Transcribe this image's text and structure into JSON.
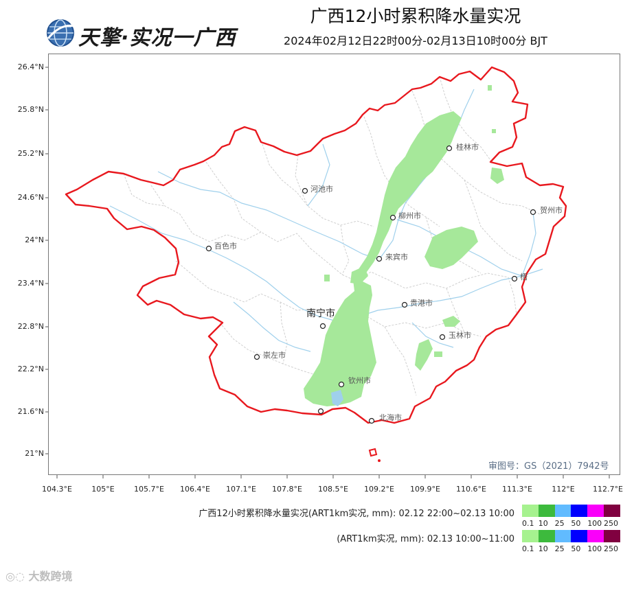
{
  "header": {
    "logo_text": "天擎·实况一广西",
    "title": "广西12小时累积降水量实况",
    "subtitle": "2024年02月12日22时00分-02月13日10时00分 BJT"
  },
  "map": {
    "y_axis_labels": [
      "26.4°N",
      "25.8°N",
      "25.2°N",
      "24.6°N",
      "24°N",
      "23.4°N",
      "22.8°N",
      "22.2°N",
      "21.6°N",
      "21°N"
    ],
    "x_axis_labels": [
      "104.3°E",
      "105°E",
      "105.7°E",
      "106.4°E",
      "107.1°E",
      "107.8°E",
      "108.5°E",
      "109.2°E",
      "109.9°E",
      "110.6°E",
      "111.3°E",
      "112°E",
      "112.7°E"
    ],
    "cities": {
      "guilin": "桂林市",
      "hechi": "河池市",
      "hezhou": "贺州市",
      "liuzhou": "柳州市",
      "baise": "百色市",
      "laibin": "来宾市",
      "wuzhou": "梧",
      "guigang": "贵港市",
      "nanning": "南宁市",
      "yulin": "玉林市",
      "chongzuo": "崇左市",
      "qinzhou": "钦州市",
      "beihai": "北海市"
    },
    "approval": "审图号：GS（2021）7942号",
    "colors": {
      "border": "#e8181e",
      "rain_light": "#a6e89a",
      "rivers": "#9fd0ec",
      "county_lines": "#cfcfcf"
    }
  },
  "legend": {
    "row1_label": "广西12小时累积降水量实况(ART1km实况, mm): 02.12 22:00~02.13 10:00",
    "row2_label": "(ART1km实况, mm): 02.13 10:00~11:00",
    "colors": [
      "#a6f28f",
      "#3dba3d",
      "#61bbff",
      "#0000fe",
      "#fa00fa",
      "#800040"
    ],
    "ticks": [
      "0.1",
      "10",
      "25",
      "50",
      "100",
      "250"
    ]
  },
  "watermark": "大数跨境"
}
